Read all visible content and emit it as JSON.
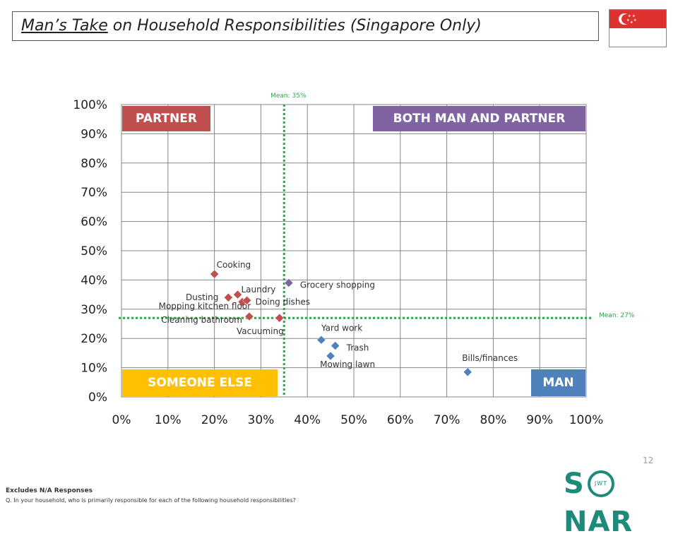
{
  "title": {
    "underlined": "Man’s Take",
    "rest": " on Household Responsibilities (Singapore Only)"
  },
  "flag": {
    "name": "singapore-flag",
    "colors": [
      "#e03131",
      "#ffffff"
    ]
  },
  "quadrants": {
    "partner": {
      "label": "PARTNER",
      "color": "#c0504d"
    },
    "both": {
      "label": "BOTH MAN AND PARTNER",
      "color": "#8064a2"
    },
    "someone_else": {
      "label": "SOMEONE ELSE",
      "color": "#ffc000"
    },
    "man": {
      "label": "MAN",
      "color": "#4f81bd"
    }
  },
  "chart_data": {
    "type": "scatter",
    "xlim": [
      0,
      100
    ],
    "ylim": [
      0,
      100
    ],
    "xticks": [
      "0%",
      "10%",
      "20%",
      "30%",
      "40%",
      "50%",
      "60%",
      "70%",
      "80%",
      "90%",
      "100%"
    ],
    "yticks": [
      "0%",
      "10%",
      "20%",
      "30%",
      "40%",
      "50%",
      "60%",
      "70%",
      "80%",
      "90%",
      "100%"
    ],
    "grid": true,
    "mean_x": {
      "value": 35,
      "label": "Mean: 35%"
    },
    "mean_y": {
      "value": 27,
      "label": "Mean: 27%"
    },
    "points": [
      {
        "label": "Cooking",
        "x": 20,
        "y": 42,
        "color": "#c0504d"
      },
      {
        "label": "Dusting",
        "x": 23,
        "y": 34,
        "color": "#c0504d"
      },
      {
        "label": "Laundry",
        "x": 25,
        "y": 35,
        "color": "#c0504d"
      },
      {
        "label": "Mopping kitchen floor",
        "x": 26,
        "y": 32.5,
        "color": "#c0504d"
      },
      {
        "label": "Doing dishes",
        "x": 27,
        "y": 33,
        "color": "#c0504d"
      },
      {
        "label": "Cleaning bathroom",
        "x": 27.5,
        "y": 27.5,
        "color": "#c0504d"
      },
      {
        "label": "Vacuuming",
        "x": 34,
        "y": 27,
        "color": "#c0504d"
      },
      {
        "label": "Grocery shopping",
        "x": 36,
        "y": 39,
        "color": "#8064a2"
      },
      {
        "label": "Yard work",
        "x": 43,
        "y": 19.5,
        "color": "#4f81bd"
      },
      {
        "label": "Trash",
        "x": 46,
        "y": 17.5,
        "color": "#4f81bd"
      },
      {
        "label": "Mowing lawn",
        "x": 45,
        "y": 14,
        "color": "#4f81bd"
      },
      {
        "label": "Bills/finances",
        "x": 74.5,
        "y": 8.5,
        "color": "#4f81bd"
      }
    ]
  },
  "page_number": "12",
  "footnote": {
    "line1": "Excludes N/A Responses",
    "line2": "Q. In your household, who is primarily responsible for each of the following household responsibilities?"
  },
  "logo": {
    "text_left": "S",
    "ring": "JWT",
    "text_right": "NAR"
  }
}
